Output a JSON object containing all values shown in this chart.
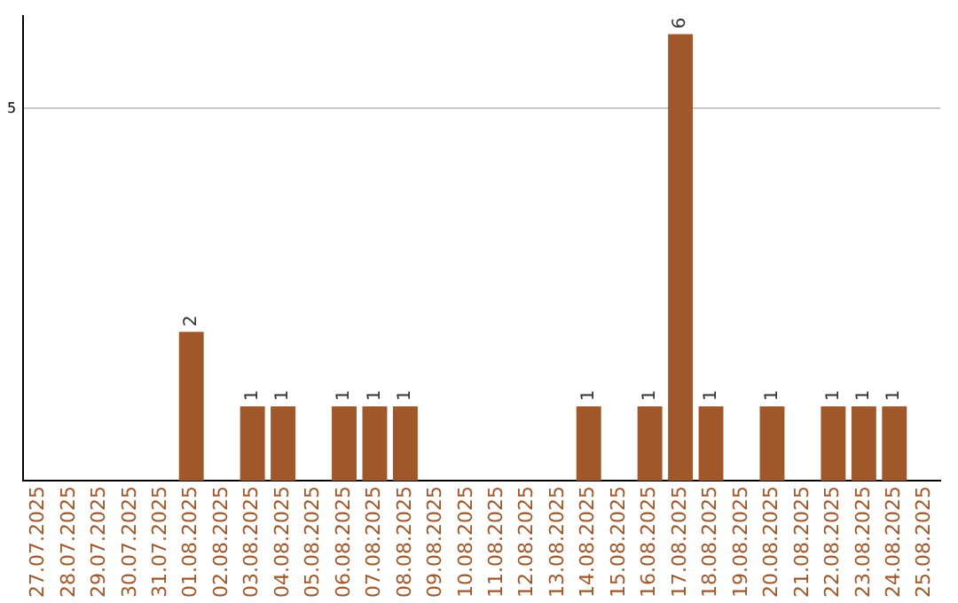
{
  "chart_data": {
    "type": "bar",
    "categories": [
      "27.07.2025",
      "28.07.2025",
      "29.07.2025",
      "30.07.2025",
      "31.07.2025",
      "01.08.2025",
      "02.08.2025",
      "03.08.2025",
      "04.08.2025",
      "05.08.2025",
      "06.08.2025",
      "07.08.2025",
      "08.08.2025",
      "09.08.2025",
      "10.08.2025",
      "11.08.2025",
      "12.08.2025",
      "13.08.2025",
      "14.08.2025",
      "15.08.2025",
      "16.08.2025",
      "17.08.2025",
      "18.08.2025",
      "19.08.2025",
      "20.08.2025",
      "21.08.2025",
      "22.08.2025",
      "23.08.2025",
      "24.08.2025",
      "25.08.2025"
    ],
    "values": [
      0,
      0,
      0,
      0,
      0,
      2,
      0,
      1,
      1,
      0,
      1,
      1,
      1,
      0,
      0,
      0,
      0,
      0,
      1,
      0,
      1,
      6,
      1,
      0,
      1,
      0,
      1,
      1,
      1,
      0
    ],
    "value_labels": [
      null,
      null,
      null,
      null,
      null,
      "2",
      null,
      "1",
      "1",
      null,
      "1",
      "1",
      "1",
      null,
      null,
      null,
      null,
      null,
      "1",
      null,
      "1",
      "6",
      "1",
      null,
      "1",
      null,
      "1",
      "1",
      "1",
      null
    ],
    "color": "#a0572a",
    "ylim": [
      0,
      6.25
    ],
    "yticks": [
      5
    ],
    "grid": "y",
    "legend": false
  }
}
